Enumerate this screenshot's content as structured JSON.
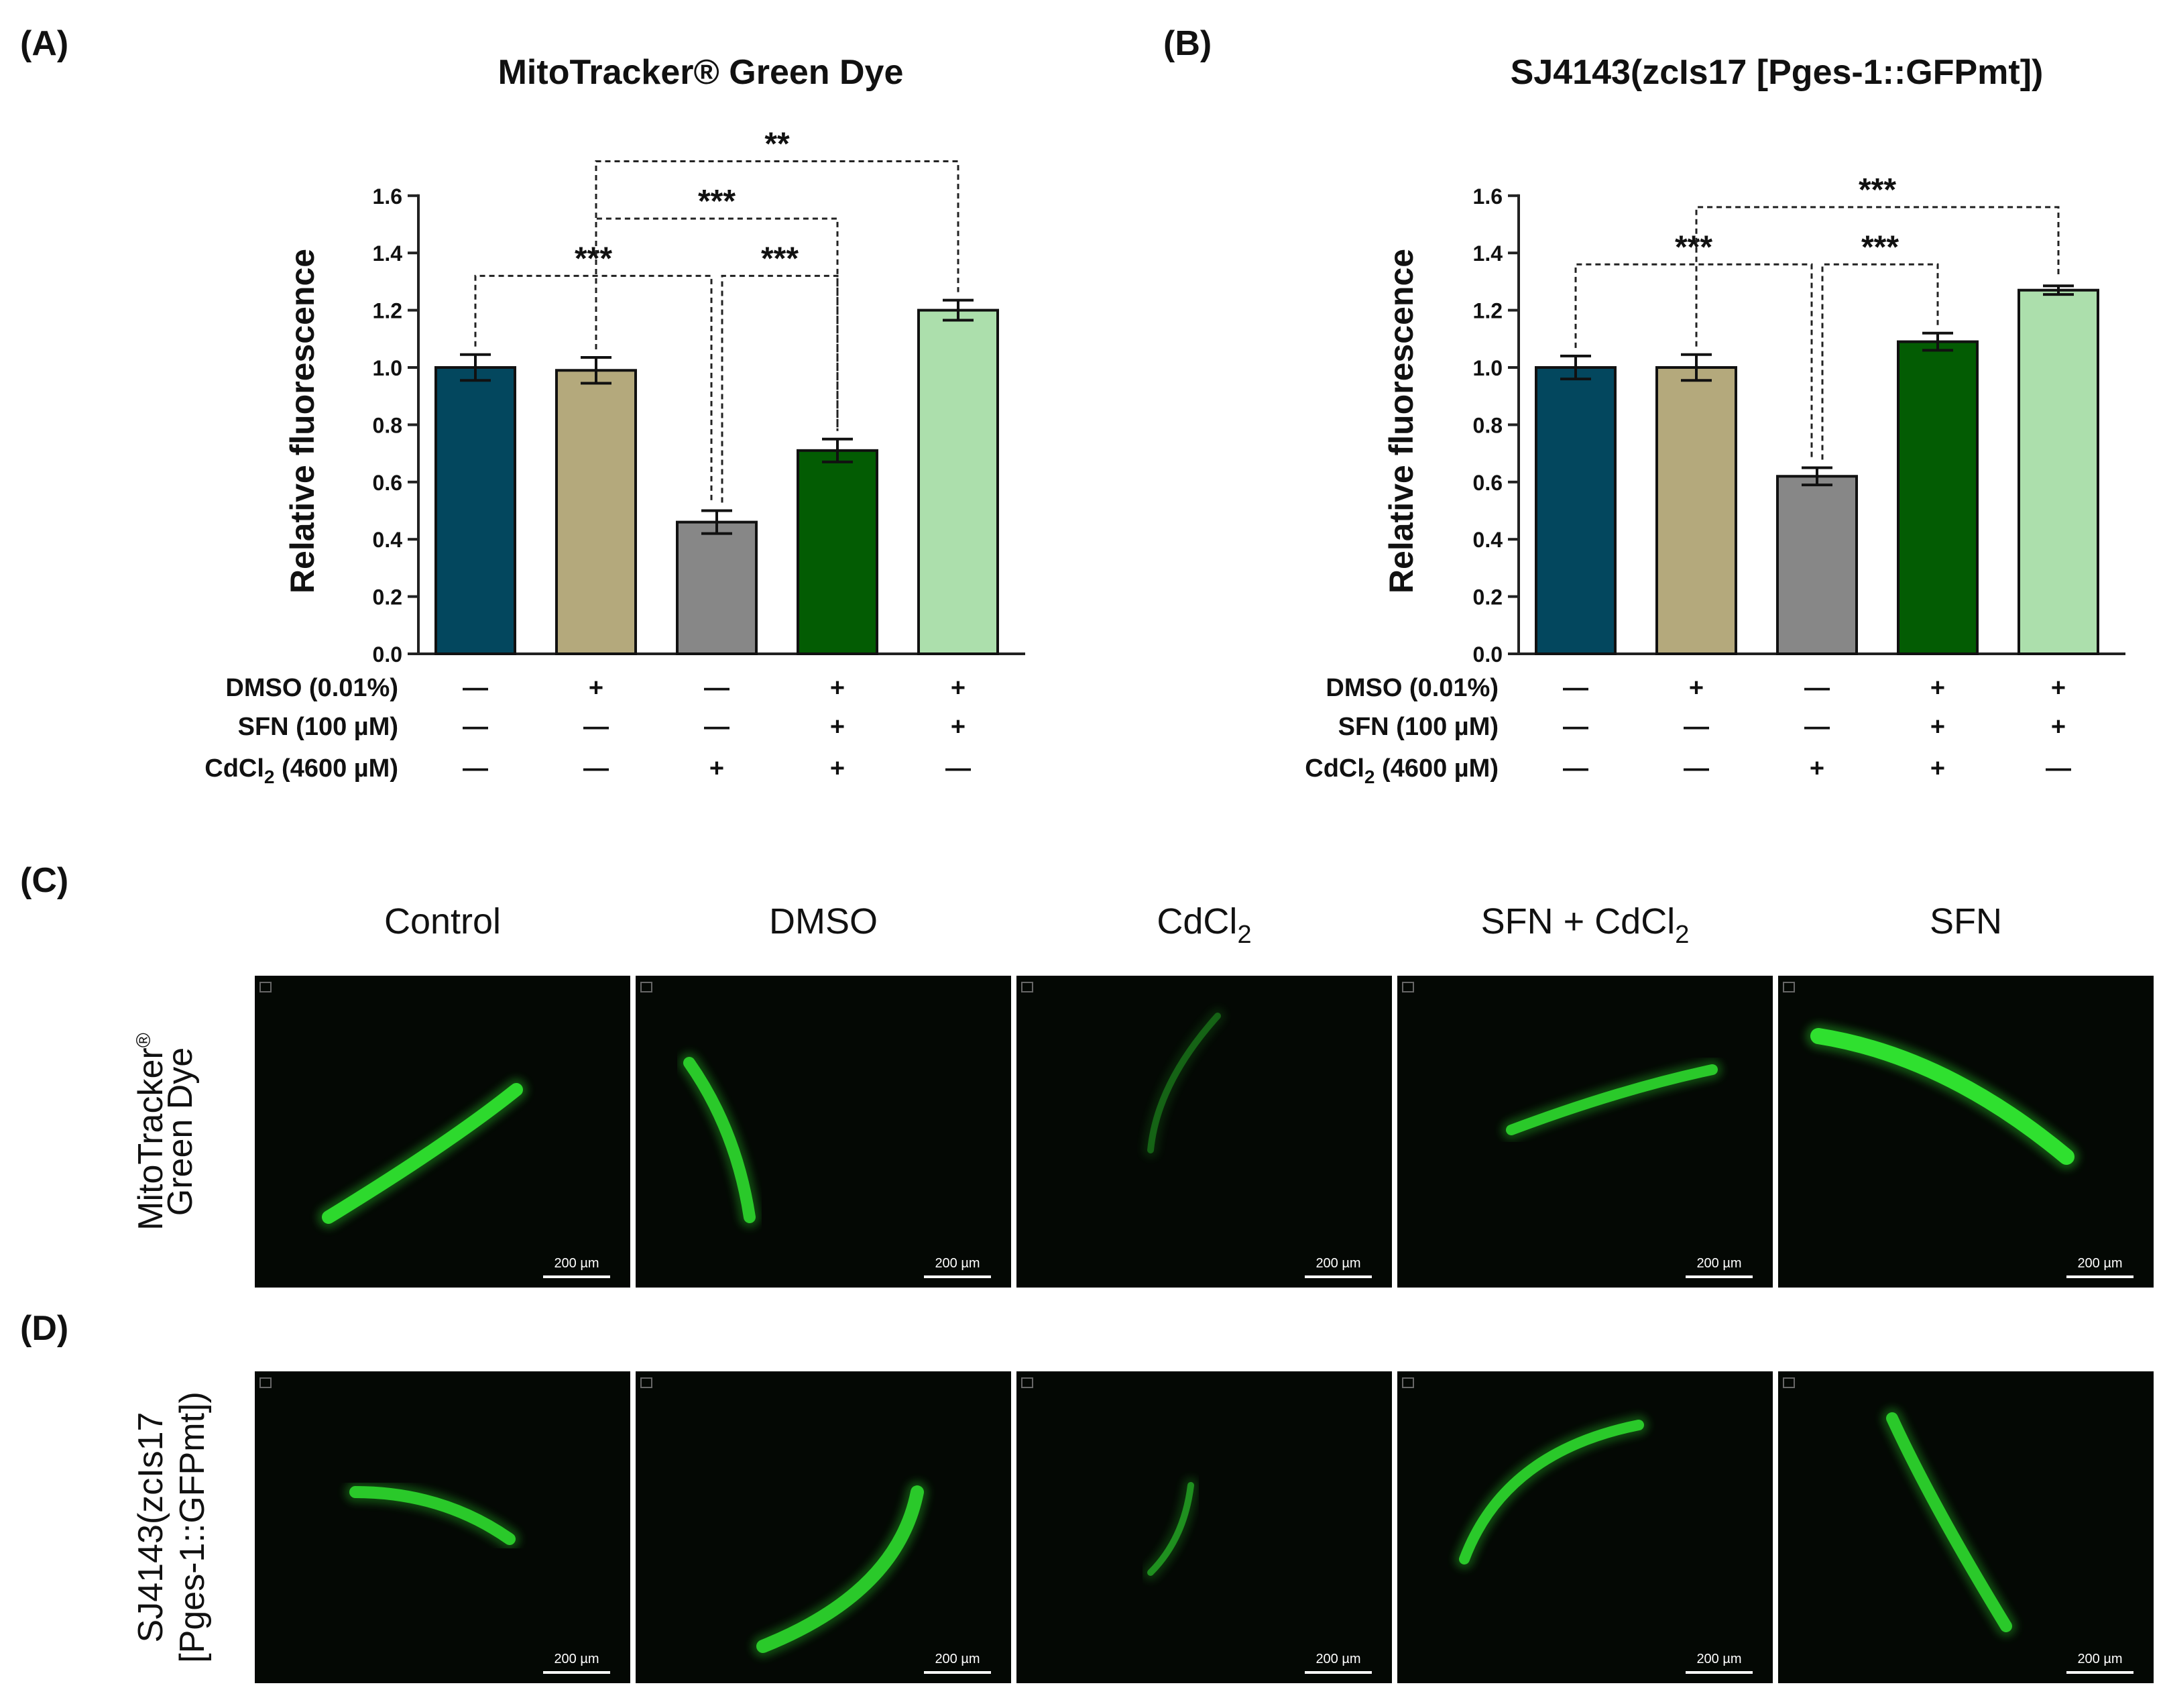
{
  "panel_labels": [
    "(A)",
    "(B)",
    "(C)",
    "(D)"
  ],
  "treatment_rows": [
    {
      "label": "DMSO (0.01%)",
      "label_main": "DMSO (0.01%)",
      "label_sub": "",
      "label_tail": "",
      "signs": [
        "—",
        "+",
        "—",
        "+",
        "+"
      ]
    },
    {
      "label": "SFN (100 µM)",
      "label_main": "SFN (100 µM)",
      "label_sub": "",
      "label_tail": "",
      "signs": [
        "—",
        "—",
        "—",
        "+",
        "+"
      ]
    },
    {
      "label": "CdCl2 (4600 µM)",
      "label_main": "CdCl",
      "label_sub": "2",
      "label_tail": " (4600 µM)",
      "signs": [
        "—",
        "—",
        "+",
        "+",
        "—"
      ]
    }
  ],
  "chart_data": [
    {
      "type": "bar",
      "panel": "(A)",
      "title": "MitoTracker® Green Dye",
      "xlabel": "",
      "ylabel": "Relative fluorescence",
      "ylim": [
        0,
        1.6
      ],
      "yticks": [
        "0.0",
        "0.2",
        "0.4",
        "0.6",
        "0.8",
        "1.0",
        "1.2",
        "1.4",
        "1.6"
      ],
      "values": [
        1.0,
        0.99,
        0.46,
        0.71,
        1.2
      ],
      "errors": [
        0.045,
        0.045,
        0.04,
        0.04,
        0.035
      ],
      "bar_colors": [
        "#03475e",
        "#b4a97c",
        "#878787",
        "#035c03",
        "#acdfac"
      ],
      "significance": [
        {
          "label": "***",
          "from": 0,
          "to": 2,
          "y": 1.32
        },
        {
          "label": "***",
          "from": 2,
          "to": 3,
          "y": 1.32
        },
        {
          "label": "***",
          "from": 1,
          "to": 3,
          "y": 1.52
        },
        {
          "label": "**",
          "from": 1,
          "to": 4,
          "y": 1.72
        }
      ]
    },
    {
      "type": "bar",
      "panel": "(B)",
      "title": "SJ4143(zcIs17 [Pges-1::GFPmt])",
      "xlabel": "",
      "ylabel": "Relative fluorescence",
      "ylim": [
        0,
        1.6
      ],
      "yticks": [
        "0.0",
        "0.2",
        "0.4",
        "0.6",
        "0.8",
        "1.0",
        "1.2",
        "1.4",
        "1.6"
      ],
      "values": [
        1.0,
        1.0,
        0.62,
        1.09,
        1.27
      ],
      "errors": [
        0.04,
        0.045,
        0.03,
        0.03,
        0.015
      ],
      "bar_colors": [
        "#03475e",
        "#b4a97c",
        "#878787",
        "#035c03",
        "#acdfac"
      ],
      "significance": [
        {
          "label": "***",
          "from": 0,
          "to": 2,
          "y": 1.36
        },
        {
          "label": "***",
          "from": 2,
          "to": 3,
          "y": 1.36
        },
        {
          "label": "***",
          "from": 1,
          "to": 4,
          "y": 1.56
        }
      ]
    }
  ],
  "micrographs": {
    "columns": [
      {
        "label": "Control",
        "main": "Control",
        "sub": ""
      },
      {
        "label": "DMSO",
        "main": "DMSO",
        "sub": ""
      },
      {
        "label": "CdCl2",
        "main": "CdCl",
        "sub": "2"
      },
      {
        "label": "SFN + CdCl2",
        "main": "SFN + CdCl",
        "sub": "2"
      },
      {
        "label": "SFN",
        "main": "SFN",
        "sub": ""
      }
    ],
    "rows": [
      {
        "panel": "(C)",
        "label_lines": [
          "MitoTracker",
          "Green Dye"
        ],
        "label_mark": "®",
        "brightness": [
          0.95,
          0.85,
          0.35,
          0.85,
          1.0
        ]
      },
      {
        "panel": "(D)",
        "label_lines": [
          "SJ4143(zcIs17",
          "[Pges-1::GFPmt])"
        ],
        "label_mark": "",
        "brightness": [
          0.85,
          0.85,
          0.55,
          0.85,
          0.85
        ]
      }
    ],
    "scale_bar": "200 µm",
    "colors": {
      "background": "#040804",
      "worm": "#2fe02f",
      "scale_bar": "#ffffff"
    }
  }
}
